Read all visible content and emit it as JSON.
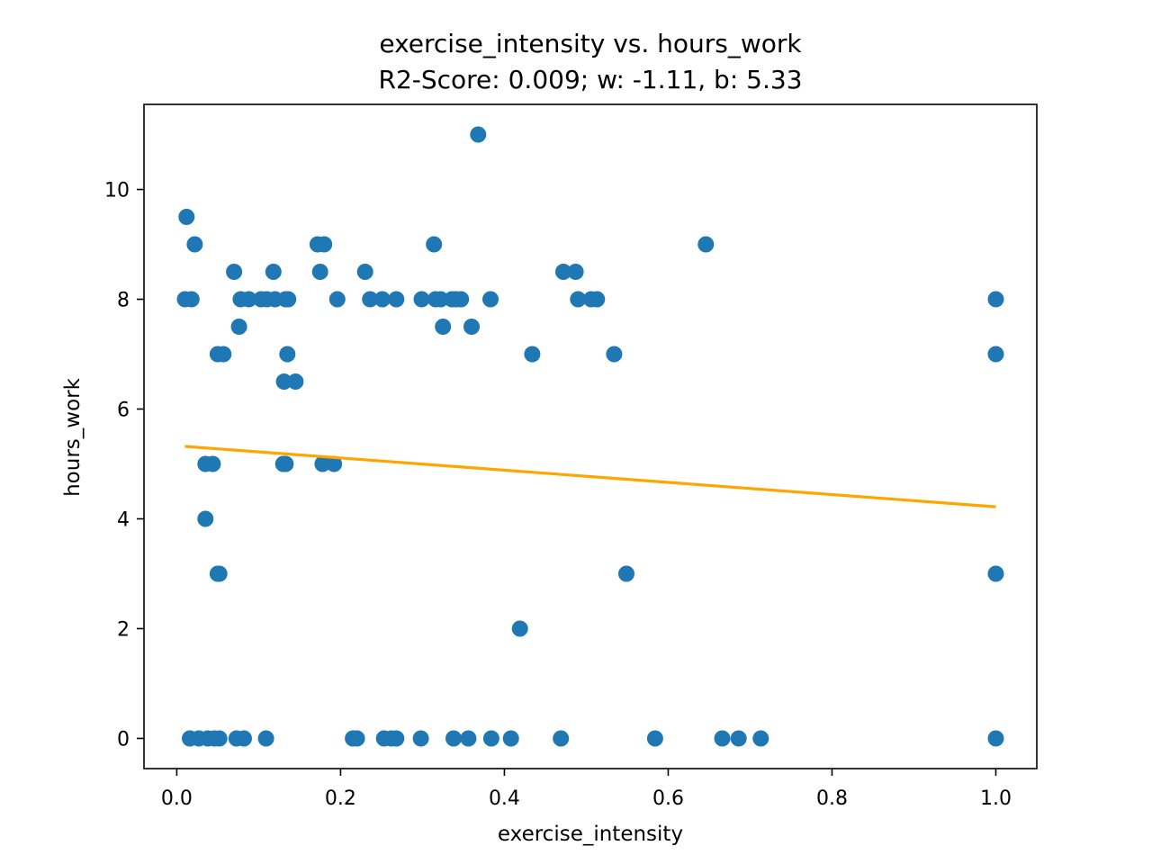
{
  "chart_data": {
    "type": "scatter",
    "title": "exercise_intensity vs. hours_work",
    "subtitle": "R2-Score: 0.009; w: -1.11, b: 5.33",
    "xlabel": "exercise_intensity",
    "ylabel": "hours_work",
    "xlim": [
      -0.04,
      1.05
    ],
    "ylim": [
      -0.55,
      11.55
    ],
    "xticks": [
      0.0,
      0.2,
      0.4,
      0.6,
      0.8,
      1.0
    ],
    "xtick_labels": [
      "0.0",
      "0.2",
      "0.4",
      "0.6",
      "0.8",
      "1.0"
    ],
    "yticks": [
      0,
      2,
      4,
      6,
      8,
      10
    ],
    "ytick_labels": [
      "0",
      "2",
      "4",
      "6",
      "8",
      "10"
    ],
    "grid": false,
    "point_color": "#1f77b4",
    "line_color": "#ffa500",
    "fit_line": {
      "w": -1.11,
      "b": 5.33,
      "x_range": [
        0.01,
        1.0
      ]
    },
    "points": [
      {
        "x": 0.012,
        "y": 9.5
      },
      {
        "x": 0.022,
        "y": 9.0
      },
      {
        "x": 0.01,
        "y": 8.0
      },
      {
        "x": 0.018,
        "y": 8.0
      },
      {
        "x": 0.07,
        "y": 8.5
      },
      {
        "x": 0.118,
        "y": 8.5
      },
      {
        "x": 0.078,
        "y": 8.0
      },
      {
        "x": 0.088,
        "y": 8.0
      },
      {
        "x": 0.103,
        "y": 8.0
      },
      {
        "x": 0.11,
        "y": 8.0
      },
      {
        "x": 0.12,
        "y": 8.0
      },
      {
        "x": 0.133,
        "y": 8.0
      },
      {
        "x": 0.136,
        "y": 8.0
      },
      {
        "x": 0.076,
        "y": 7.5
      },
      {
        "x": 0.05,
        "y": 7.0
      },
      {
        "x": 0.057,
        "y": 7.0
      },
      {
        "x": 0.135,
        "y": 7.0
      },
      {
        "x": 0.131,
        "y": 6.5
      },
      {
        "x": 0.145,
        "y": 6.5
      },
      {
        "x": 0.172,
        "y": 9.0
      },
      {
        "x": 0.18,
        "y": 9.0
      },
      {
        "x": 0.175,
        "y": 8.5
      },
      {
        "x": 0.196,
        "y": 8.0
      },
      {
        "x": 0.23,
        "y": 8.5
      },
      {
        "x": 0.236,
        "y": 8.0
      },
      {
        "x": 0.251,
        "y": 8.0
      },
      {
        "x": 0.268,
        "y": 8.0
      },
      {
        "x": 0.035,
        "y": 5.0
      },
      {
        "x": 0.044,
        "y": 5.0
      },
      {
        "x": 0.13,
        "y": 5.0
      },
      {
        "x": 0.133,
        "y": 5.0
      },
      {
        "x": 0.178,
        "y": 5.0
      },
      {
        "x": 0.192,
        "y": 5.0
      },
      {
        "x": 0.035,
        "y": 4.0
      },
      {
        "x": 0.05,
        "y": 3.0
      },
      {
        "x": 0.052,
        "y": 3.0
      },
      {
        "x": 0.368,
        "y": 11.0
      },
      {
        "x": 0.314,
        "y": 9.0
      },
      {
        "x": 0.299,
        "y": 8.0
      },
      {
        "x": 0.316,
        "y": 8.0
      },
      {
        "x": 0.322,
        "y": 8.0
      },
      {
        "x": 0.336,
        "y": 8.0
      },
      {
        "x": 0.341,
        "y": 8.0
      },
      {
        "x": 0.347,
        "y": 8.0
      },
      {
        "x": 0.383,
        "y": 8.0
      },
      {
        "x": 0.325,
        "y": 7.5
      },
      {
        "x": 0.36,
        "y": 7.5
      },
      {
        "x": 0.472,
        "y": 8.5
      },
      {
        "x": 0.487,
        "y": 8.5
      },
      {
        "x": 0.49,
        "y": 8.0
      },
      {
        "x": 0.506,
        "y": 8.0
      },
      {
        "x": 0.513,
        "y": 8.0
      },
      {
        "x": 0.434,
        "y": 7.0
      },
      {
        "x": 0.534,
        "y": 7.0
      },
      {
        "x": 0.646,
        "y": 9.0
      },
      {
        "x": 0.549,
        "y": 3.0
      },
      {
        "x": 0.419,
        "y": 2.0
      },
      {
        "x": 0.016,
        "y": 0
      },
      {
        "x": 0.027,
        "y": 0
      },
      {
        "x": 0.038,
        "y": 0
      },
      {
        "x": 0.046,
        "y": 0
      },
      {
        "x": 0.052,
        "y": 0
      },
      {
        "x": 0.073,
        "y": 0
      },
      {
        "x": 0.082,
        "y": 0
      },
      {
        "x": 0.109,
        "y": 0
      },
      {
        "x": 0.215,
        "y": 0
      },
      {
        "x": 0.22,
        "y": 0
      },
      {
        "x": 0.253,
        "y": 0
      },
      {
        "x": 0.262,
        "y": 0
      },
      {
        "x": 0.268,
        "y": 0
      },
      {
        "x": 0.298,
        "y": 0
      },
      {
        "x": 0.338,
        "y": 0
      },
      {
        "x": 0.356,
        "y": 0
      },
      {
        "x": 0.384,
        "y": 0
      },
      {
        "x": 0.408,
        "y": 0
      },
      {
        "x": 0.469,
        "y": 0
      },
      {
        "x": 0.584,
        "y": 0
      },
      {
        "x": 0.666,
        "y": 0
      },
      {
        "x": 0.686,
        "y": 0
      },
      {
        "x": 0.713,
        "y": 0
      },
      {
        "x": 1.0,
        "y": 8.0
      },
      {
        "x": 1.0,
        "y": 7.0
      },
      {
        "x": 1.0,
        "y": 3.0
      },
      {
        "x": 1.0,
        "y": 0
      }
    ]
  }
}
